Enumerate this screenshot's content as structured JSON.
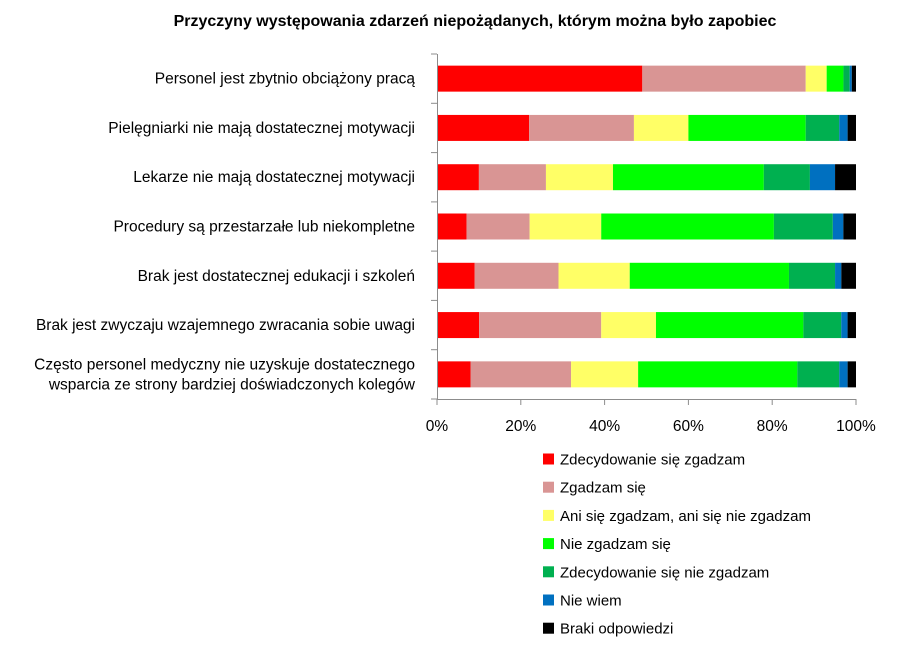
{
  "chart_data": {
    "type": "bar",
    "orientation": "horizontal",
    "stacked": "percent",
    "title": "Przyczyny występowania zdarzeń niepożądanych, którym można było zapobiec",
    "categories": [
      [
        "Personel jest zbytnio obciążony pracą"
      ],
      [
        "Pielęgniarki nie mają dostatecznej motywacji"
      ],
      [
        "Lekarze nie mają dostatecznej motywacji"
      ],
      [
        "Procedury są przestarzałe lub niekompletne"
      ],
      [
        "Brak jest dostatecznej edukacji i szkoleń"
      ],
      [
        "Brak jest zwyczaju wzajemnego zwracania sobie uwagi"
      ],
      [
        "Często personel medyczny nie uzyskuje dostatecznego",
        "wsparcia ze strony bardziej doświadczonych kolegów"
      ]
    ],
    "xlim": [
      0,
      100
    ],
    "ticks": [
      "0%",
      "20%",
      "40%",
      "60%",
      "80%",
      "100%"
    ],
    "grid": false,
    "legend_position": "bottom-right",
    "series": [
      {
        "name": "Zdecydowanie się zgadzam",
        "color": "#ff0000",
        "values": [
          49,
          22,
          10,
          7,
          9,
          10,
          8
        ]
      },
      {
        "name": "Zgadzam się",
        "color": "#d99594",
        "values": [
          39,
          25,
          16,
          15,
          20,
          29,
          24
        ]
      },
      {
        "name": "Ani się zgadzam, ani się nie zgadzam",
        "color": "#ffff66",
        "values": [
          5,
          13,
          16,
          17,
          17,
          13,
          16
        ]
      },
      {
        "name": "Nie zgadzam się",
        "color": "#00ff00",
        "values": [
          4,
          28,
          36,
          41,
          38,
          35,
          38
        ]
      },
      {
        "name": "Zdecydowanie się nie zgadzam",
        "color": "#00b050",
        "values": [
          1.5,
          8,
          11,
          14,
          11,
          9,
          10
        ]
      },
      {
        "name": "Nie wiem",
        "color": "#0070c0",
        "values": [
          0.5,
          2,
          6,
          2.5,
          1.5,
          1.5,
          2
        ]
      },
      {
        "name": "Braki odpowiedzi",
        "color": "#000000",
        "values": [
          1,
          2,
          5,
          3,
          3.5,
          2,
          2
        ]
      }
    ]
  }
}
